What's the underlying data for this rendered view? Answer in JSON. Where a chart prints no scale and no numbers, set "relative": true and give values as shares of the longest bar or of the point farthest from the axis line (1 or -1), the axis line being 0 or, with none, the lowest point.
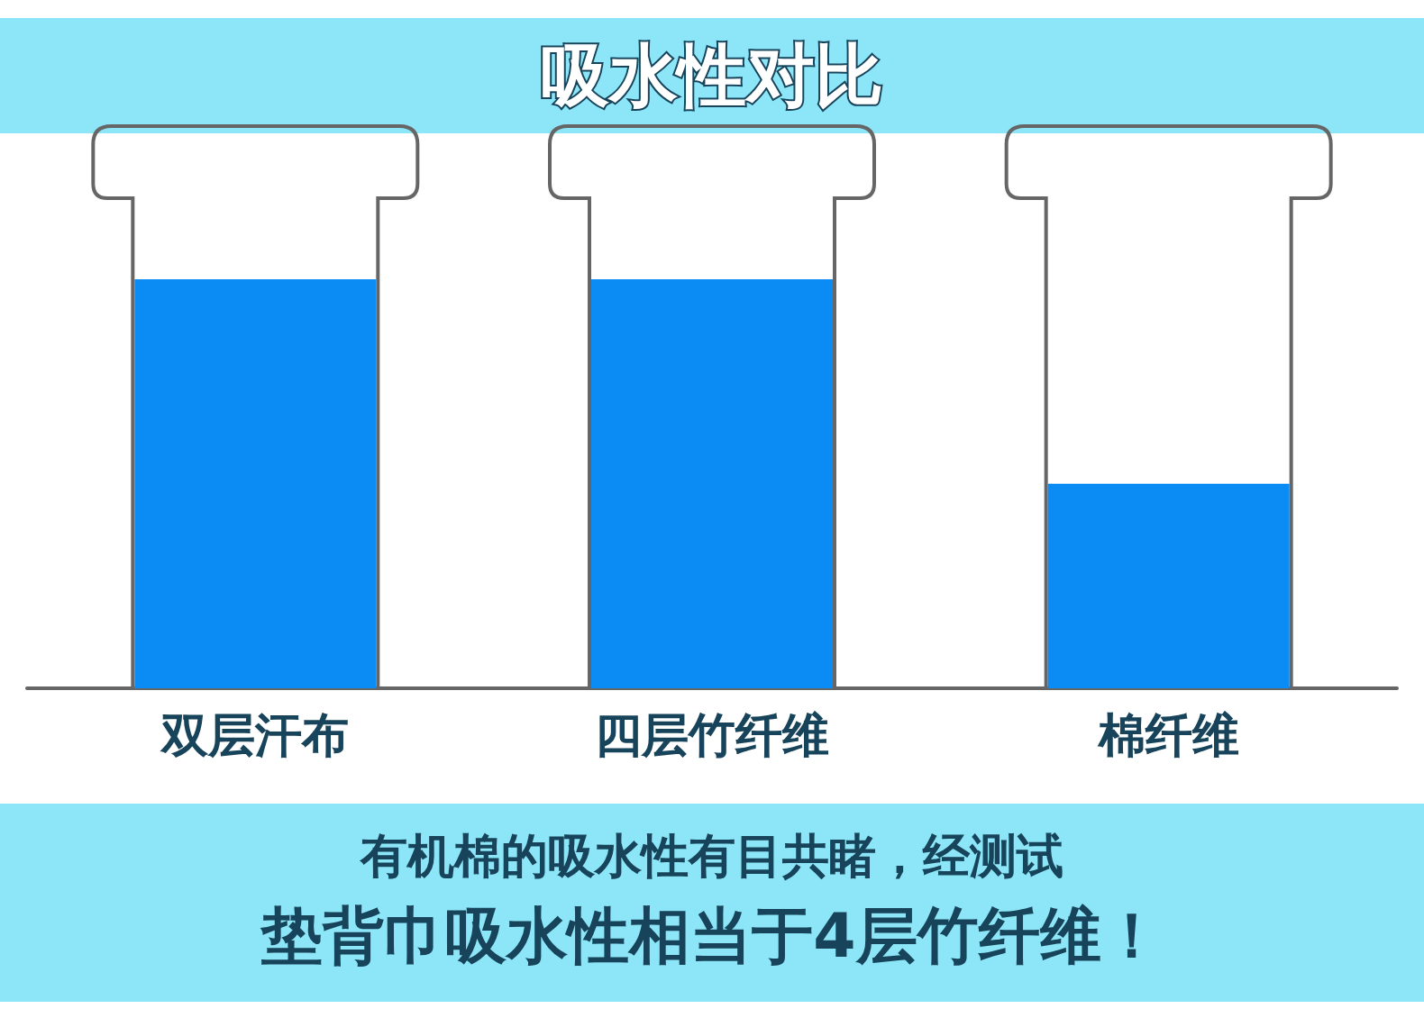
{
  "chart_data": {
    "type": "bar",
    "title": "吸水性对比",
    "relative": true,
    "categories": [
      "双层汗布",
      "四层竹纤维",
      "棉纤维"
    ],
    "values": [
      1,
      1,
      0.5
    ],
    "color": "#0a8cf4",
    "annotations": [
      "有机棉的吸水性有目共睹，经测试",
      "垫背巾吸水性相当于4层竹纤维！"
    ]
  }
}
